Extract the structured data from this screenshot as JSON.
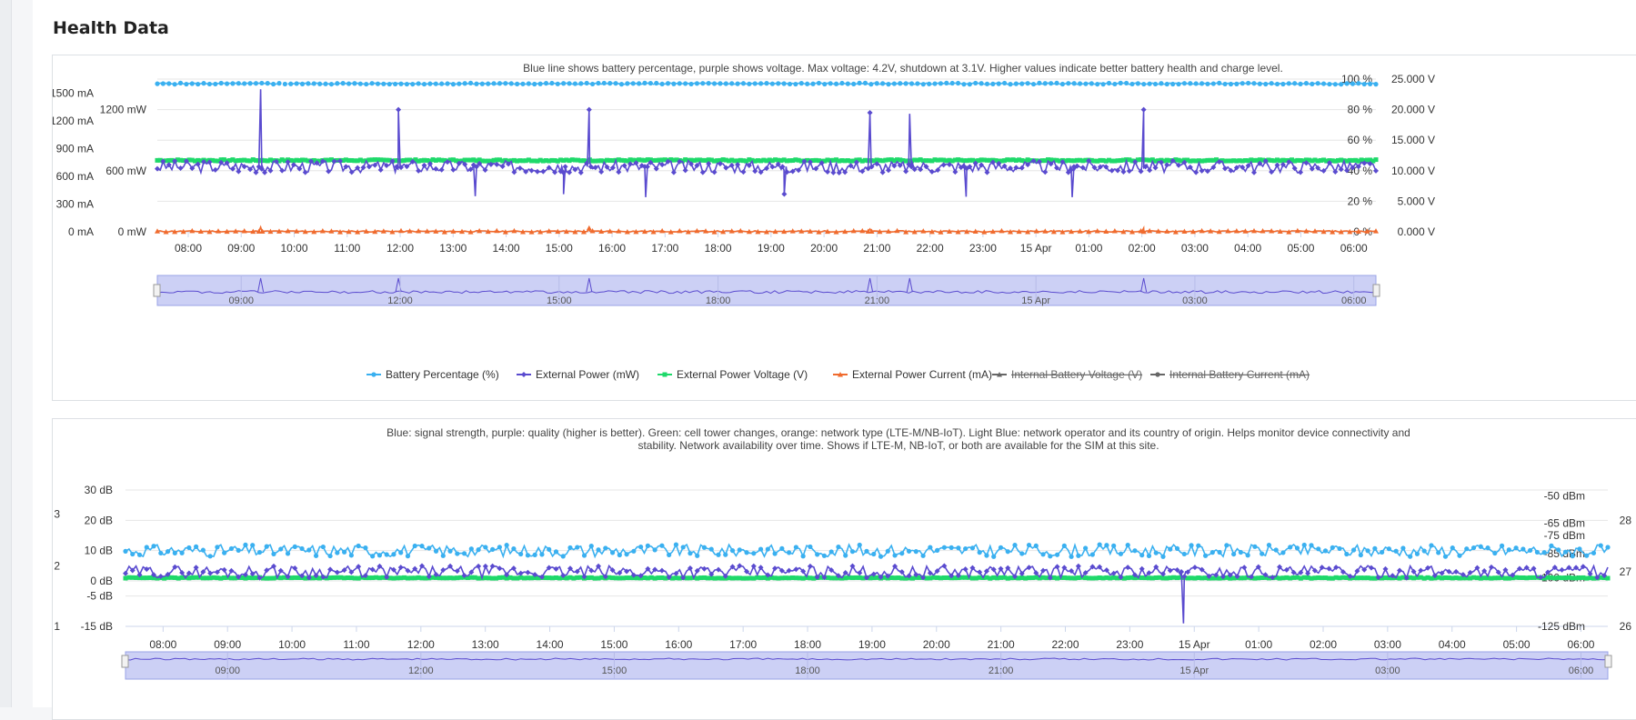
{
  "page": {
    "title": "Health Data"
  },
  "colors": {
    "battery": "#3ab0f0",
    "power": "#5a4bcf",
    "voltage": "#1ed96a",
    "current": "#f06b2e",
    "hidden": "#666666",
    "navigator_fill": "#ccd0f5"
  },
  "chart_data": [
    {
      "type": "line",
      "description": "Blue line shows battery percentage, purple shows voltage. Max voltage: 4.2V, shutdown at 3.1V. Higher values indicate better battery health and charge level.",
      "x_ticks": [
        "08:00",
        "09:00",
        "10:00",
        "11:00",
        "12:00",
        "13:00",
        "14:00",
        "15:00",
        "16:00",
        "17:00",
        "18:00",
        "19:00",
        "20:00",
        "21:00",
        "22:00",
        "23:00",
        "15 Apr",
        "01:00",
        "02:00",
        "03:00",
        "04:00",
        "05:00",
        "06:00"
      ],
      "x_range": [
        "07:25",
        "06:25"
      ],
      "y_axes": [
        {
          "id": "current",
          "ticks": [
            "0 mA",
            "300 mA",
            "600 mA",
            "900 mA",
            "1200 mA",
            "1500 mA"
          ],
          "range": [
            0,
            1650
          ]
        },
        {
          "id": "power",
          "ticks": [
            "0 mW",
            "600 mW",
            "1200 mW"
          ],
          "range": [
            0,
            1500
          ]
        },
        {
          "id": "percent",
          "ticks": [
            "0 %",
            "20 %",
            "40 %",
            "60 %",
            "80 %",
            "100 %"
          ],
          "range": [
            0,
            100
          ]
        },
        {
          "id": "volts",
          "ticks": [
            "0.000 V",
            "5.000 V",
            "10.000 V",
            "15.000 V",
            "20.000 V",
            "25.000 V"
          ],
          "range": [
            0,
            25
          ]
        }
      ],
      "series": [
        {
          "name": "Battery Percentage (%)",
          "axis": "percent",
          "color": "#3ab0f0",
          "marker": "circle",
          "baseline": 97,
          "gaps": [
            [
              "09:45",
              "09:50"
            ]
          ]
        },
        {
          "name": "External Power (mW)",
          "axis": "power",
          "color": "#5a4bcf",
          "marker": "diamond",
          "baseline": 640,
          "spikes": [
            [
              "09:22",
              1400
            ],
            [
              "11:58",
              1200
            ],
            [
              "15:34",
              1200
            ],
            [
              "20:52",
              1170
            ],
            [
              "21:37",
              1160
            ],
            [
              "02:02",
              1200
            ]
          ],
          "dips": [
            [
              "13:25",
              350
            ],
            [
              "15:05",
              370
            ],
            [
              "16:38",
              340
            ],
            [
              "19:15",
              370
            ],
            [
              "22:41",
              345
            ],
            [
              "00:41",
              340
            ]
          ]
        },
        {
          "name": "External Power Voltage (V)",
          "axis": "volts",
          "color": "#1ed96a",
          "marker": "square",
          "baseline": 11.7
        },
        {
          "name": "External Power Current (mA)",
          "axis": "current",
          "color": "#f06b2e",
          "marker": "triangle",
          "baseline": 5,
          "spikes": [
            [
              "09:22",
              50
            ],
            [
              "15:34",
              40
            ],
            [
              "20:52",
              30
            ],
            [
              "02:02",
              40
            ]
          ]
        },
        {
          "name": "Internal Battery Voltage (V)",
          "color": "#666666",
          "marker": "triangle",
          "hidden": true
        },
        {
          "name": "Internal Battery Current (mA)",
          "color": "#666666",
          "marker": "circle",
          "hidden": true
        }
      ],
      "navigator_labels": [
        "09:00",
        "12:00",
        "15:00",
        "18:00",
        "21:00",
        "15 Apr",
        "03:00",
        "06:00"
      ]
    },
    {
      "type": "line",
      "description": "Blue: signal strength, purple: quality (higher is better). Green: cell tower changes, orange: network type (LTE-M/NB-IoT). Light Blue: network operator and its country of origin. Helps monitor device connectivity and stability. Network availability over time. Shows if LTE-M, NB-IoT, or both are available for the SIM at this site.",
      "x_ticks": [
        "08:00",
        "09:00",
        "10:00",
        "11:00",
        "12:00",
        "13:00",
        "14:00",
        "15:00",
        "16:00",
        "17:00",
        "18:00",
        "19:00",
        "20:00",
        "21:00",
        "22:00",
        "23:00",
        "15 Apr",
        "01:00",
        "02:00",
        "03:00",
        "04:00",
        "05:00",
        "06:00"
      ],
      "x_range": [
        "07:25",
        "06:25"
      ],
      "y_axes": [
        {
          "id": "network",
          "ticks": [
            "1",
            "2",
            "3"
          ]
        },
        {
          "id": "db",
          "ticks": [
            "-15 dB",
            "-5 dB",
            "0 dB",
            "10 dB",
            "20 dB",
            "30 dB"
          ],
          "range": [
            -15,
            30
          ]
        },
        {
          "id": "dbm",
          "ticks": [
            "-125 dBm",
            "-100 dBm",
            "-85 dBm",
            "-75 dBm",
            "-65 dBm",
            "-50 dBm"
          ],
          "range": [
            -125,
            -50
          ]
        },
        {
          "id": "tower",
          "ticks": [
            "26",
            "27",
            "28"
          ]
        }
      ],
      "series": [
        {
          "name": "Signal strength",
          "axis": "db",
          "color": "#3ab0f0",
          "marker": "circle",
          "baseline": 10
        },
        {
          "name": "Quality",
          "axis": "db",
          "color": "#5a4bcf",
          "marker": "diamond",
          "baseline": 3,
          "dips": [
            [
              "23:50",
              -14
            ]
          ]
        },
        {
          "name": "Cell tower",
          "axis": "db",
          "color": "#1ed96a",
          "marker": "square",
          "baseline": 1
        }
      ],
      "navigator_labels": [
        "09:00",
        "12:00",
        "15:00",
        "18:00",
        "21:00",
        "15 Apr",
        "03:00",
        "06:00"
      ]
    }
  ]
}
